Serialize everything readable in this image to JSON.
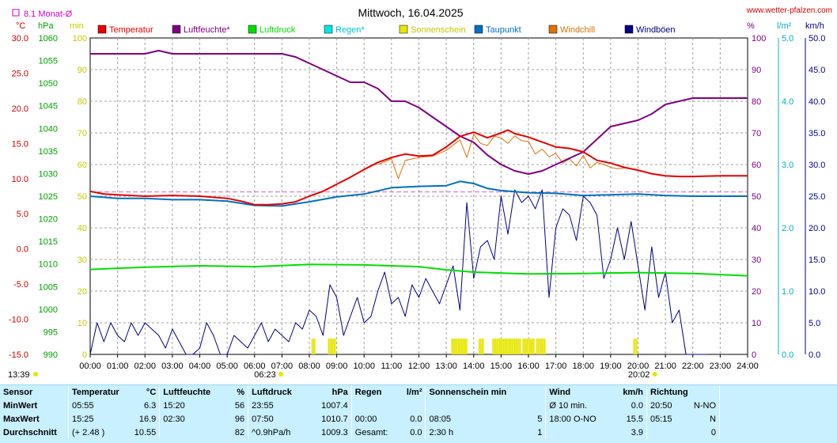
{
  "header": {
    "title": "Mittwoch, 16.04.2025",
    "site": "www.wetter-pfalzen.com",
    "month_avg": "8.1 Monat-Ø"
  },
  "units": {
    "celsius": "°C",
    "hpa": "hPa",
    "min": "min",
    "percent": "%",
    "lm2": "l/m²",
    "kmh": "km/h"
  },
  "legend": [
    {
      "label": "Temperatur",
      "color": "#e60000"
    },
    {
      "label": "Luftfeuchte*",
      "color": "#800080"
    },
    {
      "label": "Luftdruck",
      "color": "#00dd00"
    },
    {
      "label": "Regen*",
      "color": "#00e5e5"
    },
    {
      "label": "Sonnenschein",
      "color": "#e6e600"
    },
    {
      "label": "Taupunkt",
      "color": "#0070c0"
    },
    {
      "label": "Windchill",
      "color": "#e07000"
    },
    {
      "label": "Windböen",
      "color": "#000080"
    }
  ],
  "axes": {
    "temp_ticks": [
      "30.0",
      "25.0",
      "20.0",
      "15.0",
      "10.0",
      "5.0",
      "0.0",
      "-5.0",
      "-10.0",
      "-15.0"
    ],
    "hpa_ticks": [
      "1060",
      "1055",
      "1050",
      "1045",
      "1040",
      "1035",
      "1030",
      "1025",
      "1020",
      "1015",
      "1010",
      "1005",
      "1000",
      "995",
      "990"
    ],
    "min_ticks": [
      "100",
      "90",
      "80",
      "70",
      "60",
      "50",
      "40",
      "30",
      "20",
      "10",
      "0"
    ],
    "pct_ticks": [
      "100",
      "90",
      "80",
      "70",
      "60",
      "50",
      "40",
      "30",
      "20",
      "10",
      "0"
    ],
    "rain_ticks": [
      "5.0",
      "4.0",
      "3.0",
      "2.0",
      "1.0",
      "0.0"
    ],
    "kmh_ticks": [
      "50.0",
      "45.0",
      "40.0",
      "35.0",
      "30.0",
      "25.0",
      "20.0",
      "15.0",
      "10.0",
      "5.0",
      "0.0"
    ],
    "time_ticks": [
      "00:00",
      "01:00",
      "02:00",
      "03:00",
      "04:00",
      "05:00",
      "06:00",
      "07:00",
      "08:00",
      "09:00",
      "10:00",
      "11:00",
      "12:00",
      "13:00",
      "14:00",
      "15:00",
      "16:00",
      "17:00",
      "18:00",
      "19:00",
      "20:00",
      "21:00",
      "22:00",
      "23:00",
      "24:00"
    ],
    "sunrise": "06:23",
    "sunset": "20:02",
    "update_time": "13:39"
  },
  "chart_data": {
    "type": "line",
    "x_unit": "hours",
    "xlim": [
      0,
      24
    ],
    "ylim_temp": [
      -15,
      30
    ],
    "ylim_percent": [
      0,
      100
    ],
    "ylim_kmh": [
      0,
      50
    ],
    "month_avg_temp": 8.1,
    "series": [
      {
        "name": "Temperatur",
        "axis": "temp",
        "x": [
          0,
          0.5,
          1,
          2,
          3,
          4,
          5,
          5.5,
          6,
          6.5,
          7,
          7.5,
          8,
          8.5,
          9,
          9.5,
          10,
          10.5,
          11,
          11.5,
          12,
          12.5,
          13,
          13.5,
          14,
          14.5,
          15,
          15.25,
          15.5,
          16,
          16.5,
          17,
          17.5,
          18,
          18.5,
          19,
          19.5,
          20,
          20.5,
          21,
          21.5,
          22,
          23,
          24
        ],
        "y": [
          8.2,
          7.8,
          7.7,
          7.5,
          7.6,
          7.5,
          7.2,
          6.8,
          6.3,
          6.3,
          6.4,
          6.7,
          7.5,
          8.2,
          9.2,
          10.2,
          11.3,
          12.3,
          13,
          13.5,
          13.2,
          13.3,
          14.5,
          16,
          16.6,
          15.8,
          16.5,
          16.9,
          16.4,
          15.9,
          15.2,
          14.5,
          14.3,
          13.8,
          12.6,
          12.2,
          11.6,
          11.2,
          10.7,
          10.4,
          10.3,
          10.3,
          10.4,
          10.4
        ]
      },
      {
        "name": "Luftfeuchte*",
        "axis": "percent",
        "x": [
          0,
          1,
          2,
          2.5,
          3,
          4,
          5,
          6,
          7,
          7.5,
          8,
          8.5,
          9,
          9.5,
          10,
          10.5,
          11,
          11.5,
          12,
          12.5,
          13,
          13.5,
          14,
          14.5,
          15,
          15.5,
          16,
          16.5,
          17,
          17.5,
          18,
          18.5,
          19,
          19.5,
          20,
          20.5,
          21,
          21.5,
          22,
          23,
          24
        ],
        "y": [
          95,
          95,
          95,
          96,
          95,
          95,
          95,
          95,
          95,
          94,
          92,
          90,
          88,
          86,
          86,
          84,
          80,
          80,
          78,
          75,
          72,
          69,
          67,
          63,
          60,
          58,
          57,
          58,
          60,
          62,
          64,
          68,
          72,
          73,
          74,
          76,
          79,
          80,
          81,
          81,
          81
        ]
      },
      {
        "name": "Luftdruck",
        "axis": "hpa",
        "x": [
          0,
          2,
          4,
          6,
          8,
          10,
          12,
          13,
          14,
          16,
          18,
          20,
          22,
          24
        ],
        "y": [
          1008.8,
          1009.3,
          1009.6,
          1009.4,
          1009.9,
          1009.8,
          1009.4,
          1008.7,
          1008.2,
          1007.8,
          1007.9,
          1008.1,
          1007.9,
          1007.4
        ]
      },
      {
        "name": "Taupunkt",
        "axis": "temp",
        "x": [
          0,
          1,
          2,
          3,
          4,
          5,
          6,
          7,
          8,
          9,
          10,
          11,
          12,
          13,
          13.5,
          14,
          14.5,
          15,
          16,
          17,
          18,
          19,
          20,
          21,
          22,
          23,
          24
        ],
        "y": [
          7.5,
          7.2,
          7.2,
          7.0,
          7.0,
          6.8,
          6.2,
          6.1,
          6.7,
          7.4,
          7.8,
          8.7,
          8.9,
          9,
          9.6,
          9.3,
          8.6,
          8.3,
          8,
          7.9,
          7.6,
          7.7,
          7.8,
          7.6,
          7.5,
          7.5,
          7.5
        ]
      },
      {
        "name": "Windchill",
        "axis": "temp",
        "x": [
          10.5,
          11,
          11.25,
          11.5,
          12,
          12.5,
          13,
          13.5,
          13.75,
          14,
          14.25,
          14.5,
          14.75,
          15,
          15.25,
          15.5,
          15.75,
          16,
          16.25,
          16.5,
          16.75,
          17,
          17.25,
          17.5,
          17.75,
          18,
          18.25,
          18.5,
          18.75,
          19,
          19.25,
          19.5
        ],
        "y": [
          12.0,
          12.8,
          10,
          12.6,
          13.0,
          13.2,
          14.0,
          15.5,
          13,
          16.3,
          15,
          14.7,
          16,
          15.8,
          15.0,
          16.1,
          15.4,
          15.3,
          13.5,
          14.2,
          13.1,
          13.6,
          12.2,
          12.8,
          11.8,
          13.3,
          11.5,
          12.3,
          12.0,
          11.6,
          11.4,
          11.5
        ]
      },
      {
        "name": "Windböen",
        "axis": "kmh",
        "x": [
          0,
          0.25,
          0.5,
          0.75,
          1,
          1.25,
          1.5,
          1.75,
          2,
          2.25,
          2.5,
          2.75,
          3,
          3.25,
          3.5,
          3.75,
          4,
          4.25,
          4.5,
          4.75,
          5,
          5.25,
          5.5,
          5.75,
          6,
          6.25,
          6.5,
          6.75,
          7,
          7.25,
          7.5,
          7.75,
          8,
          8.25,
          8.5,
          8.75,
          9,
          9.25,
          9.5,
          9.75,
          10,
          10.25,
          10.5,
          10.75,
          11,
          11.25,
          11.5,
          11.75,
          12,
          12.25,
          12.5,
          12.75,
          13,
          13.25,
          13.5,
          13.75,
          14,
          14.25,
          14.5,
          14.75,
          15,
          15.25,
          15.5,
          15.75,
          16,
          16.25,
          16.5,
          16.75,
          17,
          17.25,
          17.5,
          17.75,
          18,
          18.25,
          18.5,
          18.75,
          19,
          19.25,
          19.5,
          19.75,
          20,
          20.25,
          20.5,
          20.75,
          21,
          21.25,
          21.5,
          21.75,
          22,
          22.25,
          22.5
        ],
        "y": [
          0,
          5,
          2,
          5,
          3,
          2,
          5,
          3,
          5,
          4,
          3,
          1,
          4,
          2,
          0,
          0,
          1,
          5,
          3,
          0,
          0,
          3,
          2,
          1,
          3,
          5,
          2,
          4,
          3,
          2,
          5,
          4,
          7,
          6,
          3,
          11,
          9,
          3,
          6,
          9,
          5,
          6,
          10,
          13,
          8,
          9,
          6,
          11,
          9,
          12,
          10,
          8,
          11,
          14,
          7,
          24,
          12,
          17,
          18,
          15,
          25,
          19,
          26,
          24,
          25,
          23,
          26,
          9,
          20,
          23,
          22,
          18,
          25,
          24,
          22,
          12,
          15,
          20,
          15,
          21,
          14,
          7,
          17,
          9,
          13,
          5,
          7,
          0,
          0,
          0,
          0
        ]
      }
    ],
    "sunshine_bars": [
      {
        "start": 8.1,
        "end": 8.2
      },
      {
        "start": 8.7,
        "end": 8.95
      },
      {
        "start": 13.2,
        "end": 13.75
      },
      {
        "start": 14.2,
        "end": 14.35
      },
      {
        "start": 14.7,
        "end": 15.15
      },
      {
        "start": 15.2,
        "end": 15.7
      },
      {
        "start": 15.8,
        "end": 16.2
      },
      {
        "start": 16.3,
        "end": 16.6
      },
      {
        "start": 19.85,
        "end": 19.95
      }
    ]
  },
  "stats": {
    "headers": [
      {
        "label": "Sensor",
        "unit": ""
      },
      {
        "label": "Temperatur",
        "unit": "°C"
      },
      {
        "label": "Luftfeuchte",
        "unit": "%"
      },
      {
        "label": "Luftdruck",
        "unit": "hPa"
      },
      {
        "label": "Regen",
        "unit": "l/m²"
      },
      {
        "label": "Sonnenschein min",
        "unit": ""
      },
      {
        "label": "Wind",
        "unit": "km/h"
      },
      {
        "label": "Richtung",
        "unit": ""
      }
    ],
    "rows": [
      {
        "label": "MinWert",
        "cells": [
          [
            "05:55",
            "6.3"
          ],
          [
            "15:20",
            "56"
          ],
          [
            "23:55",
            "1007.4"
          ],
          [
            "",
            ""
          ],
          [
            "",
            ""
          ],
          [
            "Ø 10 min.",
            "0.0"
          ],
          [
            "20:50",
            "N-NO"
          ]
        ]
      },
      {
        "label": "MaxWert",
        "cells": [
          [
            "15:25",
            "16.9"
          ],
          [
            "02:30",
            "96"
          ],
          [
            "07:50",
            "1010.7"
          ],
          [
            "00:00",
            "0.0"
          ],
          [
            "08:05",
            "5"
          ],
          [
            "18:00     O-NO",
            "15.5"
          ],
          [
            "05:15",
            "N"
          ]
        ]
      },
      {
        "label": "Durchschnitt",
        "cells": [
          [
            "(+ 2.48 )",
            "10.55"
          ],
          [
            "",
            "82"
          ],
          [
            "^0.9hPa/h",
            "1009.3"
          ],
          [
            "Gesamt:",
            "0.0"
          ],
          [
            "2:30 h",
            "1"
          ],
          [
            "",
            "3.9"
          ],
          [
            "",
            "0"
          ]
        ]
      }
    ]
  }
}
